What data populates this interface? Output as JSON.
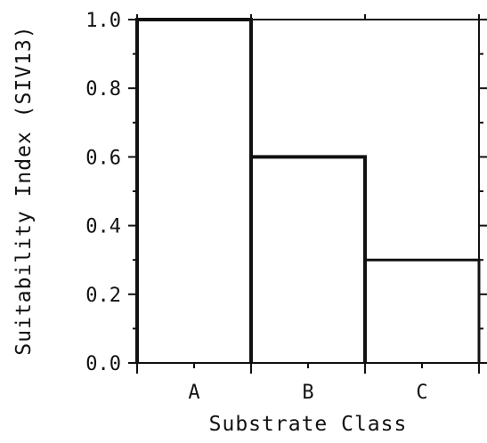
{
  "chart_data": {
    "type": "bar",
    "style": "step",
    "categories": [
      "A",
      "B",
      "C"
    ],
    "values": [
      1.0,
      0.6,
      0.3
    ],
    "title": "",
    "xlabel": "Substrate Class",
    "ylabel": "Suitability Index (SIV13)",
    "ylim": [
      0,
      1.0
    ],
    "yticks": [
      {
        "value": 0.0,
        "label": "0.0"
      },
      {
        "value": 0.2,
        "label": "0.2"
      },
      {
        "value": 0.4,
        "label": "0.4"
      },
      {
        "value": 0.6,
        "label": "0.6"
      },
      {
        "value": 0.8,
        "label": "0.8"
      },
      {
        "value": 1.0,
        "label": "1.0"
      }
    ],
    "grid": false,
    "legend": "none"
  }
}
